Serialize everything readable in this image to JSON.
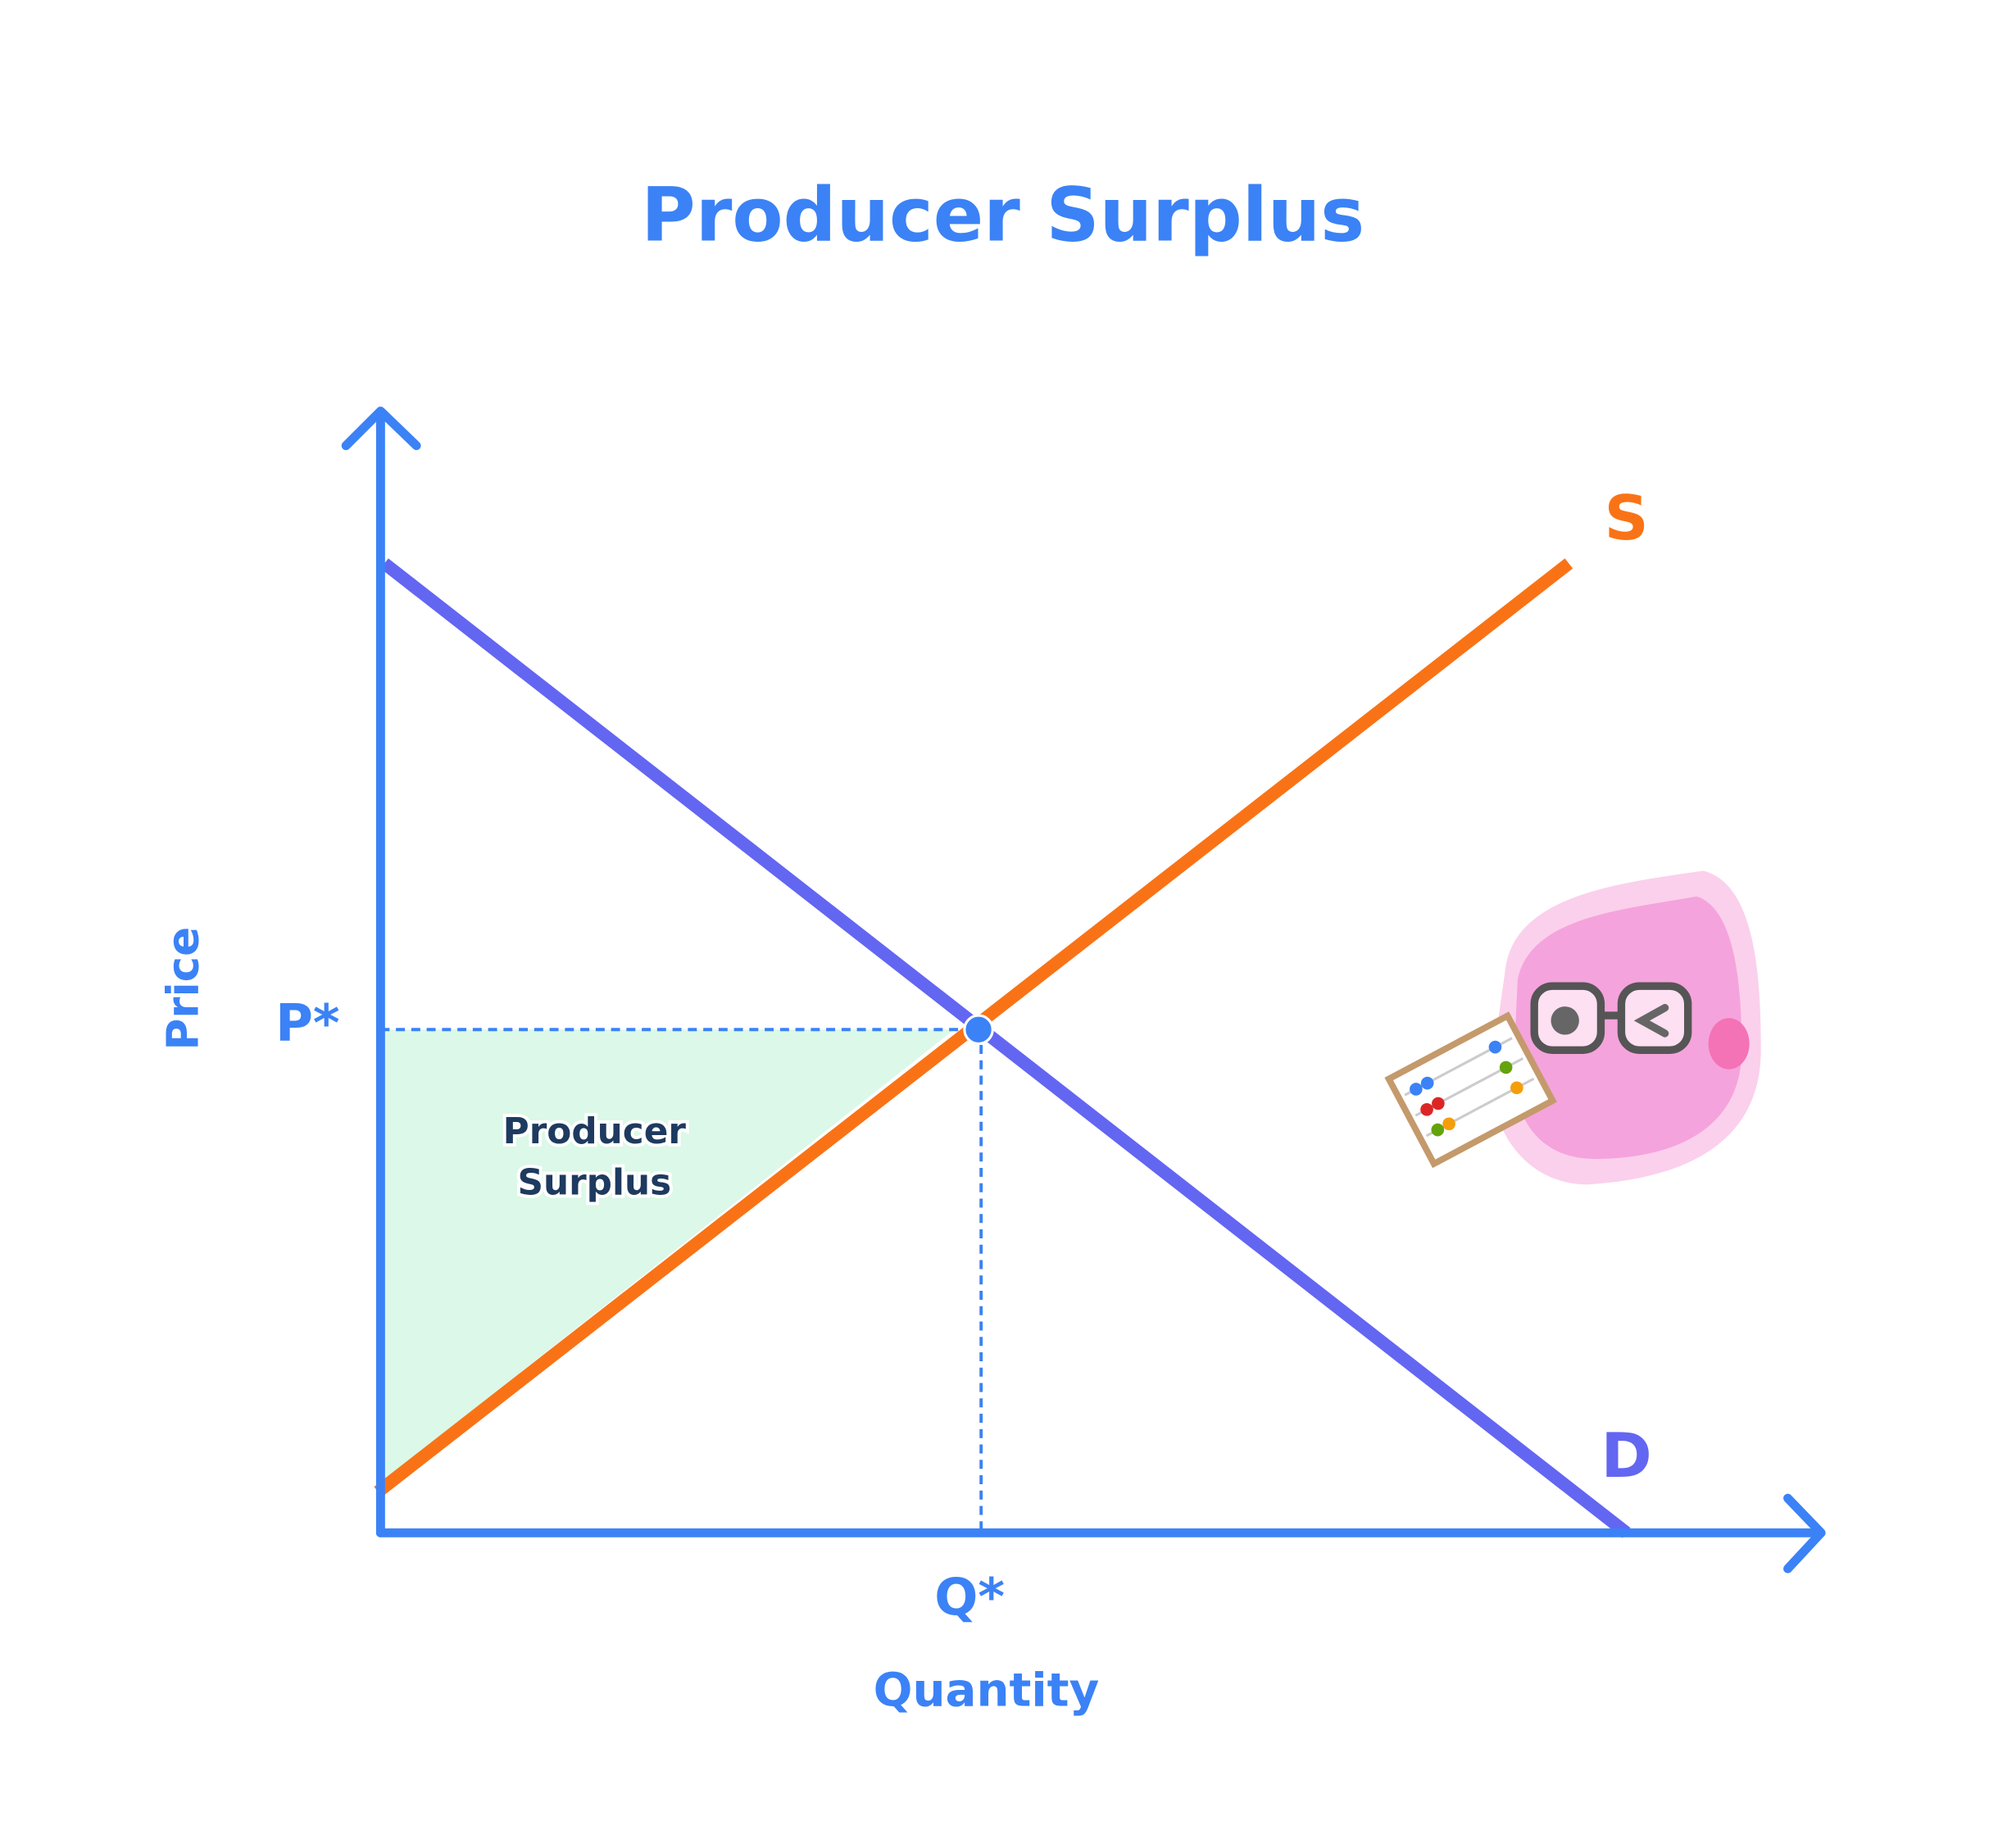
{
  "title": "Producer Surplus",
  "axes": {
    "y_label": "Price",
    "x_label": "Quantity"
  },
  "equilibrium": {
    "price_label": "P*",
    "quantity_label": "Q*"
  },
  "curves": {
    "supply": {
      "label": "S"
    },
    "demand": {
      "label": "D"
    }
  },
  "region": {
    "label_lines": [
      "Producer",
      "Surplus"
    ]
  }
}
